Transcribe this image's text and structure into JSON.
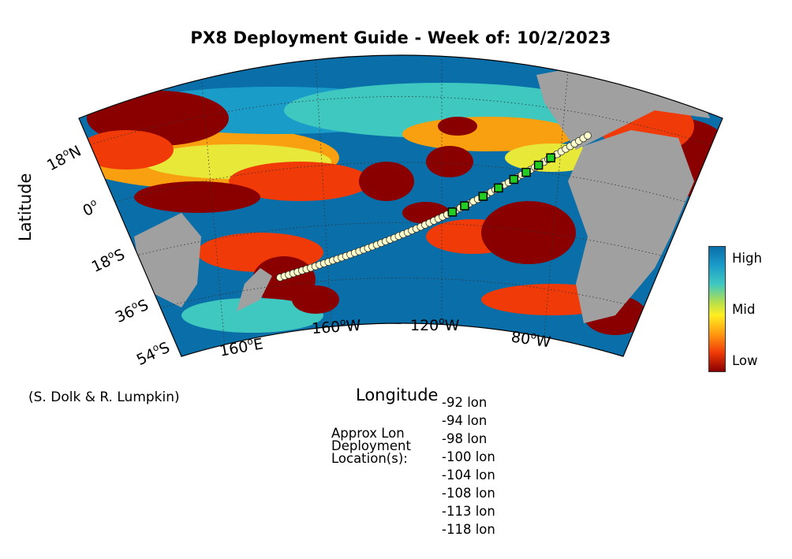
{
  "title": "PX8 Deployment Guide - Week of: 10/2/2023",
  "axes": {
    "ylabel": "Latitude",
    "xlabel": "Longitude",
    "lat_ticks": [
      {
        "value": "18",
        "hemi": "N"
      },
      {
        "value": "0",
        "hemi": ""
      },
      {
        "value": "18",
        "hemi": "S"
      },
      {
        "value": "36",
        "hemi": "S"
      },
      {
        "value": "54",
        "hemi": "S"
      }
    ],
    "lon_ticks": [
      {
        "value": "160",
        "hemi": "E"
      },
      {
        "value": "160",
        "hemi": "W"
      },
      {
        "value": "120",
        "hemi": "W"
      },
      {
        "value": "80",
        "hemi": "W"
      }
    ],
    "degree_symbol": "o"
  },
  "colorbar": {
    "labels": [
      "High",
      "Mid",
      "Low"
    ],
    "colors": [
      "#0a6ea8",
      "#ffee20",
      "#8a0000"
    ]
  },
  "credit": "(S. Dolk & R. Lumpkin)",
  "deployment": {
    "label_lines": [
      "Approx Lon",
      "Deployment",
      "Location(s):"
    ],
    "locations": [
      "-92 lon",
      "-94 lon",
      "-98 lon",
      "-100 lon",
      "-104 lon",
      "-108 lon",
      "-113 lon",
      "-118 lon"
    ]
  },
  "colors": {
    "land": "#a0a0a0",
    "ocean_high": "#0a6ea8",
    "ocean_low": "#8a0000",
    "track_marker": "#ffffcc",
    "deploy_marker": "#22cc22"
  }
}
